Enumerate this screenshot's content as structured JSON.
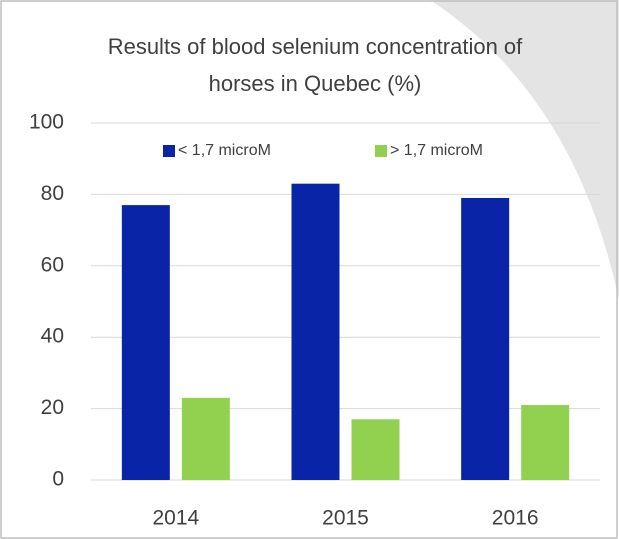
{
  "chart_data": {
    "type": "bar",
    "title": "Results of blood selenium concentration of horses in Quebec (%)",
    "categories": [
      "2014",
      "2015",
      "2016"
    ],
    "series": [
      {
        "name": "< 1,7 microM",
        "color": "#0a24a8",
        "values": [
          77,
          83,
          79
        ]
      },
      {
        "name": "> 1,7 microM",
        "color": "#92d050",
        "values": [
          23,
          17,
          21
        ]
      }
    ],
    "ylim": [
      0,
      100
    ],
    "yticks": [
      0,
      20,
      40,
      60,
      80,
      100
    ],
    "grid": true,
    "legend": "top"
  }
}
